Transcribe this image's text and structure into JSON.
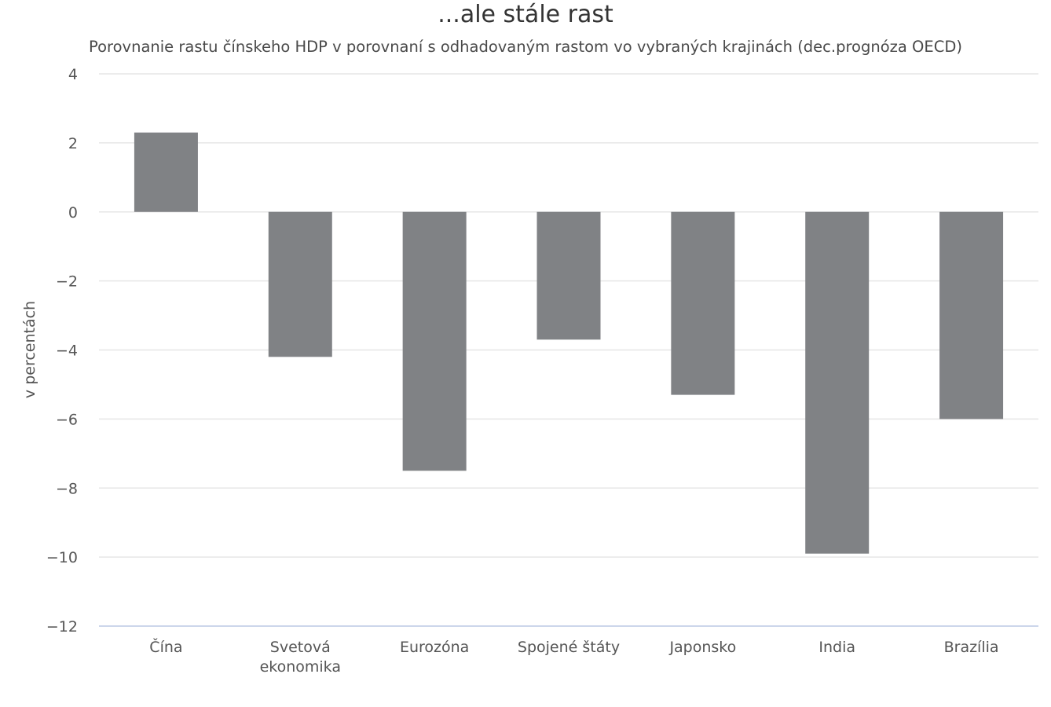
{
  "chart_data": {
    "type": "bar",
    "title": "...ale stále rast",
    "subtitle": "Porovnanie rastu čínskeho HDP v porovnaní s odhadovaným rastom vo vybraných krajinách (dec.prognóza OECD)",
    "xlabel": "",
    "ylabel": "v percentách",
    "categories": [
      "Čína",
      "Svetová\nekonomika",
      "Eurozóna",
      "Spojené štáty",
      "Japonsko",
      "India",
      "Brazília"
    ],
    "values": [
      2.3,
      -4.2,
      -7.5,
      -3.7,
      -5.3,
      -9.9,
      -6.0
    ],
    "ylim": [
      -12,
      4
    ],
    "yticks": [
      4,
      2,
      0,
      -2,
      -4,
      -6,
      -8,
      -10,
      -12
    ],
    "ytick_labels": [
      "4",
      "2",
      "0",
      "−2",
      "−4",
      "−6",
      "−8",
      "−10",
      "−12"
    ],
    "grid": true,
    "legend": "none"
  },
  "colors": {
    "bar": "#808285",
    "grid": "#e6e6e6",
    "axis_line": "#ccd6eb",
    "background": "#ffffff"
  }
}
